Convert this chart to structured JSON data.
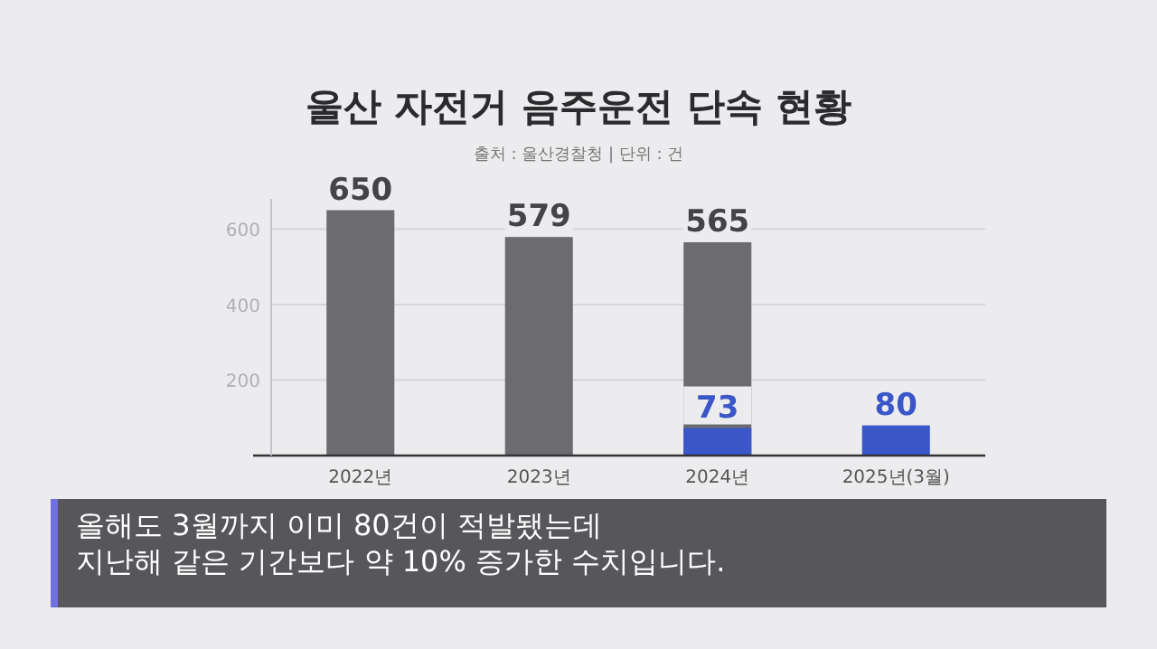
{
  "chart_data": {
    "type": "bar",
    "title": "울산 자전거 음주운전 단속 현황",
    "subtitle": "출처 : 울산경찰청  |  단위 : 건",
    "categories": [
      "2022년",
      "2023년",
      "2024년",
      "2025년(3월)"
    ],
    "series": [
      {
        "color": "#6b6b70",
        "values": [
          650,
          579,
          565,
          null
        ]
      },
      {
        "color": "#3a56c8",
        "values": [
          null,
          null,
          73,
          80
        ]
      }
    ],
    "ylim": [
      0,
      680
    ],
    "yticks": [
      200,
      400,
      600
    ],
    "grid": "y",
    "data_labels": true,
    "annotations": [
      "올해도 3월까지 이미 80건이 적발됐는데",
      "지난해 같은 기간보다 약 10% 증가한 수치입니다."
    ]
  }
}
